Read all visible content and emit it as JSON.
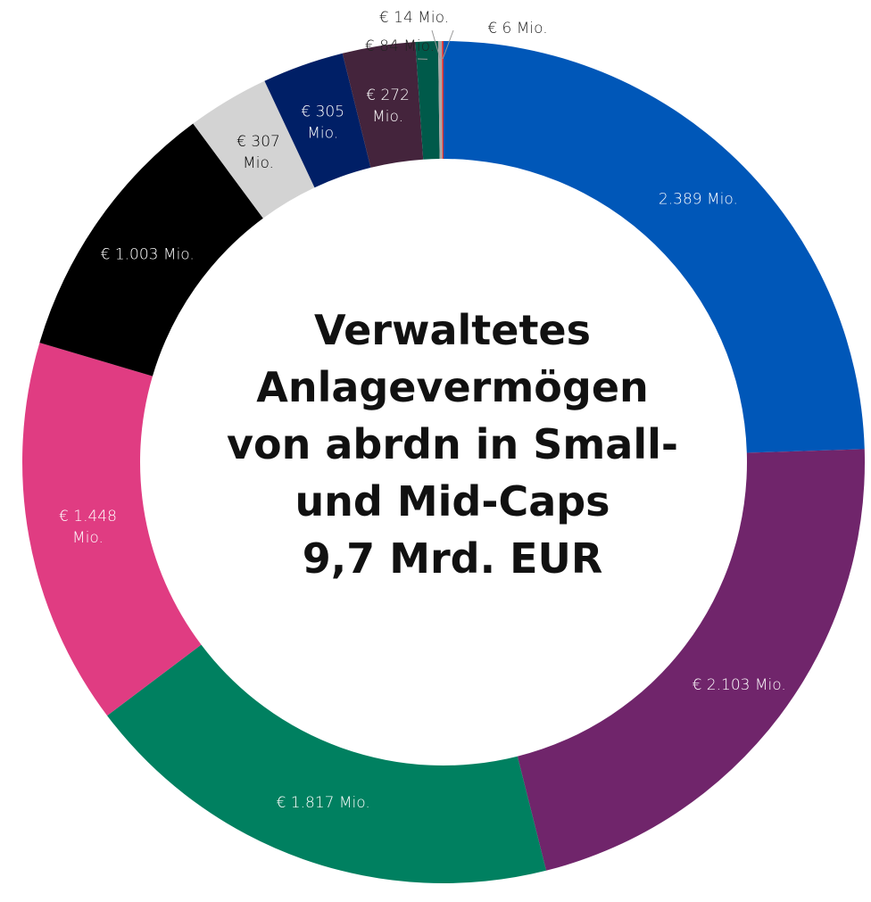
{
  "chart_data": {
    "type": "donut",
    "title": "Verwaltetes Anlagevermögen von abrdn in Small- und Mid-Caps",
    "subtitle": "9,7 Mrd. EUR",
    "values": [
      2389,
      2103,
      1817,
      1448,
      1003,
      307,
      305,
      272,
      84,
      14,
      6
    ],
    "value_labels": [
      "2.389 Mio.",
      "€ 2.103 Mio.",
      "€ 1.817 Mio.",
      "€ 1.448 Mio.",
      "€ 1.003 Mio.",
      "€ 307 Mio.",
      "€ 305 Mio.",
      "€ 272 Mio.",
      "€ 84 Mio.",
      "€ 14 Mio.",
      "€ 6 Mio."
    ],
    "colors": [
      "#0057b8",
      "#70256b",
      "#008060",
      "#e03c82",
      "#000000",
      "#d3d3d3",
      "#001f66",
      "#44243c",
      "#005a4a",
      "#a8a8a8",
      "#e03030"
    ]
  }
}
